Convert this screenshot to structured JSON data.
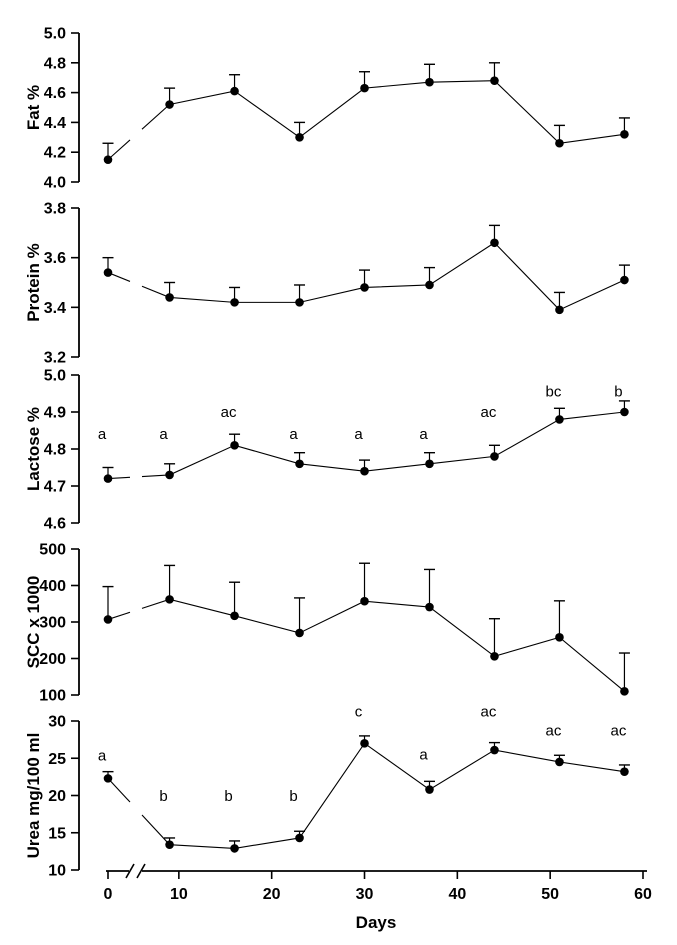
{
  "figure": {
    "background_color": "#ffffff",
    "axis_color": "#000000",
    "marker_color": "#000000",
    "xlabel": "Days",
    "xticks": [
      0,
      10,
      20,
      30,
      40,
      50,
      60
    ],
    "x_axis_break_note": "scale break on x axis between day 0 and day 9",
    "legend": "none",
    "grid": "off"
  },
  "chart_data": [
    {
      "type": "line",
      "series_name": "Fat",
      "ylabel": "Fat %",
      "ylim": [
        4.0,
        5.0
      ],
      "yticks": [
        "4.0",
        "4.2",
        "4.4",
        "4.6",
        "4.8",
        "5.0"
      ],
      "x": [
        0,
        9,
        16,
        23,
        30,
        37,
        44,
        51,
        58
      ],
      "values": [
        4.15,
        4.52,
        4.61,
        4.3,
        4.63,
        4.67,
        4.68,
        4.26,
        4.32
      ],
      "errors_up": [
        0.11,
        0.11,
        0.11,
        0.1,
        0.11,
        0.12,
        0.12,
        0.12,
        0.11
      ],
      "letters": null
    },
    {
      "type": "line",
      "series_name": "Protein",
      "ylabel": "Protein %",
      "ylim": [
        3.2,
        3.8
      ],
      "yticks": [
        "3.2",
        "3.4",
        "3.6",
        "3.8"
      ],
      "x": [
        0,
        9,
        16,
        23,
        30,
        37,
        44,
        51,
        58
      ],
      "values": [
        3.54,
        3.44,
        3.42,
        3.42,
        3.48,
        3.49,
        3.66,
        3.39,
        3.51
      ],
      "errors_up": [
        0.06,
        0.06,
        0.06,
        0.07,
        0.07,
        0.07,
        0.07,
        0.07,
        0.06
      ],
      "letters": null
    },
    {
      "type": "line",
      "series_name": "Lactose",
      "ylabel": "Lactose %",
      "ylim": [
        4.6,
        5.0
      ],
      "yticks": [
        "4.6",
        "4.7",
        "4.8",
        "4.9",
        "5.0"
      ],
      "x": [
        0,
        9,
        16,
        23,
        30,
        37,
        44,
        51,
        58
      ],
      "values": [
        4.72,
        4.73,
        4.81,
        4.76,
        4.74,
        4.76,
        4.78,
        4.88,
        4.9
      ],
      "errors_up": [
        0.03,
        0.03,
        0.03,
        0.03,
        0.03,
        0.03,
        0.03,
        0.03,
        0.03
      ],
      "letters": [
        {
          "text": "a",
          "y": 4.84
        },
        {
          "text": "a",
          "y": 4.84
        },
        {
          "text": "ac",
          "y": 4.9
        },
        {
          "text": "a",
          "y": 4.84
        },
        {
          "text": "a",
          "y": 4.84
        },
        {
          "text": "a",
          "y": 4.84
        },
        {
          "text": "ac",
          "y": 4.9
        },
        {
          "text": "bc",
          "y": 4.955
        },
        {
          "text": "b",
          "y": 4.955
        }
      ]
    },
    {
      "type": "line",
      "series_name": "SCC",
      "ylabel": "SCC x 1000",
      "ylim": [
        100,
        500
      ],
      "yticks": [
        "100",
        "200",
        "300",
        "400",
        "500"
      ],
      "x": [
        0,
        9,
        16,
        23,
        30,
        37,
        44,
        51,
        58
      ],
      "values": [
        307,
        362,
        317,
        270,
        357,
        341,
        206,
        258,
        110
      ],
      "errors_up": [
        90,
        93,
        92,
        96,
        104,
        103,
        103,
        100,
        105
      ],
      "letters": null
    },
    {
      "type": "line",
      "series_name": "Urea",
      "ylabel": "Urea mg/100 ml",
      "ylim": [
        10,
        30
      ],
      "yticks": [
        "10",
        "15",
        "20",
        "25",
        "30"
      ],
      "x": [
        0,
        9,
        16,
        23,
        30,
        37,
        44,
        51,
        58
      ],
      "values": [
        22.3,
        13.4,
        12.9,
        14.3,
        27.0,
        20.8,
        26.1,
        24.5,
        23.2
      ],
      "errors_up": [
        0.9,
        0.9,
        1.0,
        0.9,
        1.0,
        1.1,
        1.0,
        0.9,
        0.9
      ],
      "letters": [
        {
          "text": "a",
          "y": 25.4
        },
        {
          "text": "b",
          "y": 19.9
        },
        {
          "text": "b",
          "y": 19.9
        },
        {
          "text": "b",
          "y": 19.9
        },
        {
          "text": "c",
          "y": 31.3
        },
        {
          "text": "a",
          "y": 25.5
        },
        {
          "text": "ac",
          "y": 31.3
        },
        {
          "text": "ac",
          "y": 28.7
        },
        {
          "text": "ac",
          "y": 28.7
        }
      ]
    }
  ]
}
